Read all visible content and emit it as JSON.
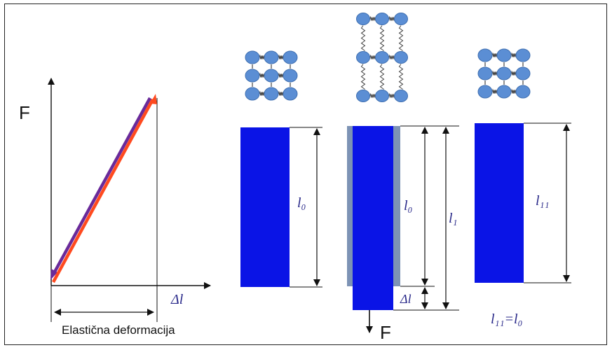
{
  "graph": {
    "y_label": "F",
    "x_label": "Δl",
    "span_label": "Elastična deformacija",
    "load_color": "#ff4a1f",
    "unload_color": "#6a2a9a"
  },
  "bar_original": {
    "length_label": "l₀"
  },
  "bar_stretched": {
    "original_length_label": "l₀",
    "total_length_label": "l₁",
    "extension_label": "Δl",
    "force_label": "F"
  },
  "bar_returned": {
    "length_label": "l₁₁",
    "relation_label": "l₁₁=l₀"
  },
  "colors": {
    "bar": "#0a14e6",
    "bar_shadow": "#7d93b5",
    "atom": "#5b8ed4",
    "atom_edge": "#3f6fb0"
  }
}
